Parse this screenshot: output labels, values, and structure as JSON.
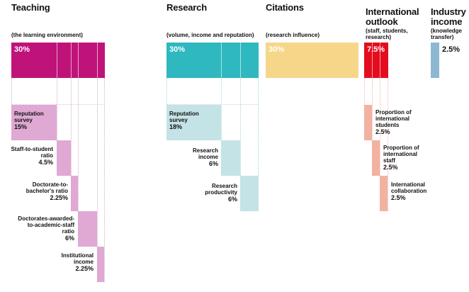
{
  "colors": {
    "teaching": "#c0137a",
    "teaching_light": "#dfa9d4",
    "research": "#2fb8bf",
    "research_light": "#c4e3e6",
    "citations": "#f6d78a",
    "international": "#e30d1f",
    "international_light": "#f3b1a1",
    "industry": "#8db8d2"
  },
  "pillars": [
    {
      "title": "Teaching",
      "subtitle": "(the learning environment)",
      "weight": "30%"
    },
    {
      "title": "Research",
      "subtitle": "(volume, income and reputation)",
      "weight": "30%"
    },
    {
      "title": "Citations",
      "subtitle": "(research influence)",
      "weight": "30%"
    },
    {
      "title_lines": [
        "International",
        "outlook"
      ],
      "subtitle_lines": [
        "(staff, students,",
        "research)"
      ],
      "weight": "7.5%"
    },
    {
      "title_lines": [
        "Industry",
        "income"
      ],
      "subtitle_lines": [
        "(knowledge",
        "transfer)"
      ],
      "weight": "2.5%"
    }
  ],
  "teaching_items": [
    {
      "label_lines": [
        "Reputation",
        "survey"
      ],
      "value": "15%"
    },
    {
      "label_lines": [
        "Staff-to-student",
        "ratio"
      ],
      "value": "4.5%"
    },
    {
      "label_lines": [
        "Doctorate-to-",
        "bachelor's ratio"
      ],
      "value": "2.25%"
    },
    {
      "label_lines": [
        "Doctorates-awarded-",
        "to-academic-staff",
        "ratio"
      ],
      "value": "6%"
    },
    {
      "label_lines": [
        "Institutional",
        "income"
      ],
      "value": "2.25%"
    }
  ],
  "research_items": [
    {
      "label_lines": [
        "Reputation",
        "survey"
      ],
      "value": "18%"
    },
    {
      "label_lines": [
        "Research",
        "income"
      ],
      "value": "6%"
    },
    {
      "label_lines": [
        "Research",
        "productivity"
      ],
      "value": "6%"
    }
  ],
  "international_items": [
    {
      "label_lines": [
        "Proportion of",
        "international",
        "students"
      ],
      "value": "2.5%"
    },
    {
      "label_lines": [
        "Proportion of",
        "international",
        "staff"
      ],
      "value": "2.5%"
    },
    {
      "label_lines": [
        "International",
        "collaboration"
      ],
      "value": "2.5%"
    }
  ]
}
